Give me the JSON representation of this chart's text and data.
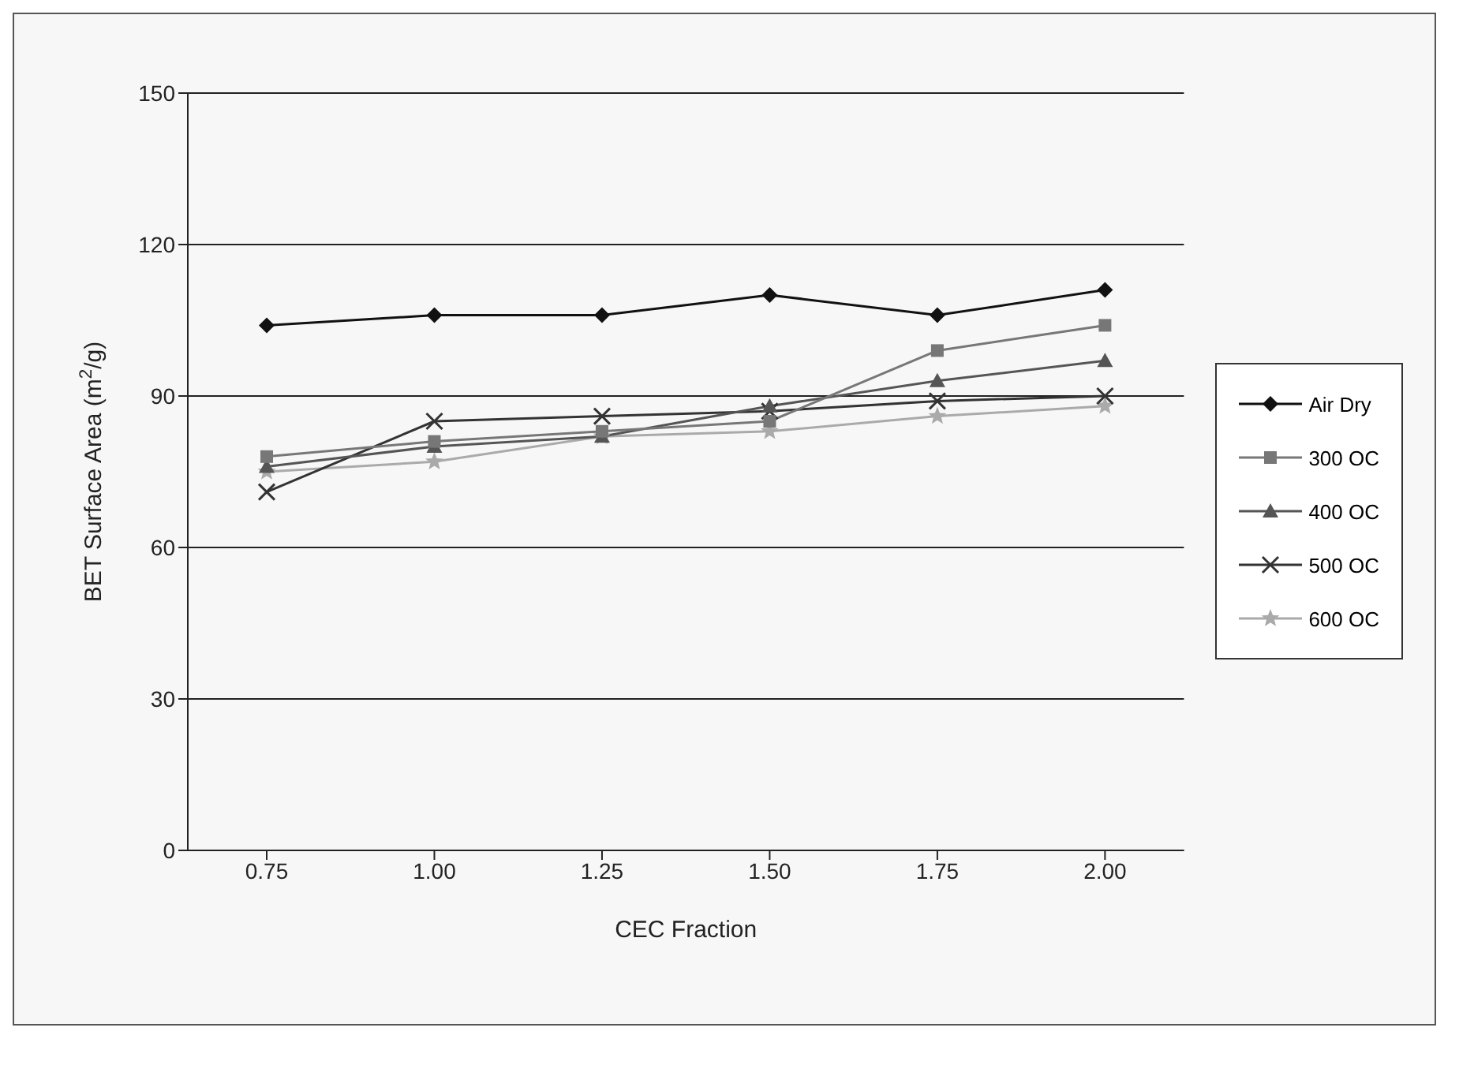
{
  "chart_data": {
    "type": "line",
    "xlabel": "CEC Fraction",
    "ylabel": "BET Surface Area (m$^{2}$/g)",
    "categories": [
      "0.75",
      "1.00",
      "1.25",
      "1.50",
      "1.75",
      "2.00"
    ],
    "series": [
      {
        "name": "Air Dry",
        "color": "#111111",
        "marker": "diamond",
        "values": [
          104,
          106,
          106,
          110,
          106,
          111
        ]
      },
      {
        "name": "300 OC",
        "color": "#777777",
        "marker": "square",
        "values": [
          78,
          81,
          83,
          85,
          99,
          104
        ]
      },
      {
        "name": "400 OC",
        "color": "#555555",
        "marker": "triangle",
        "values": [
          76,
          80,
          82,
          88,
          93,
          97
        ]
      },
      {
        "name": "500 OC",
        "color": "#333333",
        "marker": "cross",
        "values": [
          71,
          85,
          86,
          87,
          89,
          90
        ]
      },
      {
        "name": "600 OC",
        "color": "#aaaaaa",
        "marker": "star",
        "values": [
          75,
          77,
          82,
          83,
          86,
          88
        ]
      }
    ],
    "ylim": [
      0,
      150
    ],
    "yticks": [
      0,
      30,
      60,
      90,
      120,
      150
    ],
    "grid": "y",
    "legend": "right"
  }
}
